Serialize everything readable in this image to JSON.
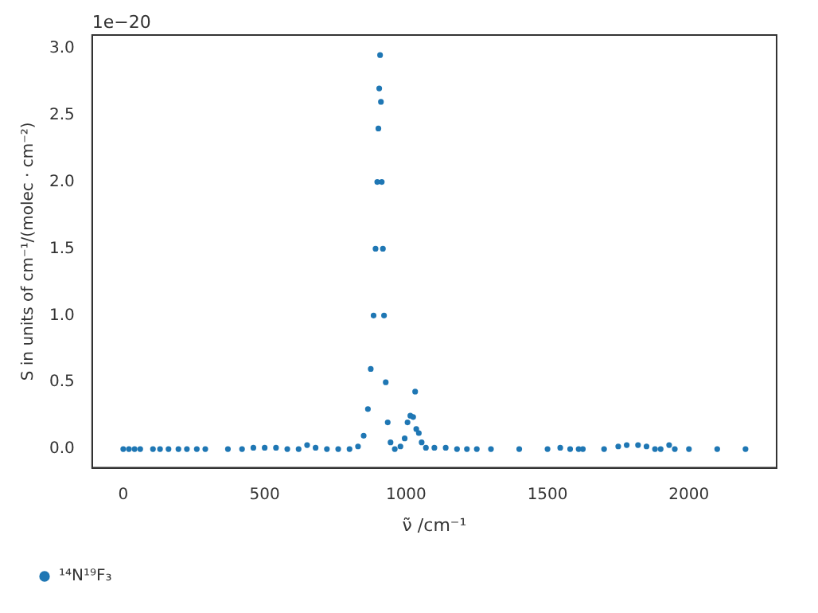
{
  "chart_data": {
    "type": "scatter",
    "xlabel": "ν̃ /cm⁻¹",
    "ylabel": "S in units of cm⁻¹/(molec · cm⁻²)",
    "annotations": [
      "1e−20"
    ],
    "xlim": [
      -110,
      2310
    ],
    "xticks": [
      0,
      500,
      1000,
      1500,
      2000
    ],
    "ylim": [
      -0.14,
      3.1
    ],
    "yticks": [
      {
        "value": 0,
        "label": "0.0"
      },
      0.5,
      {
        "value": 1,
        "label": "1.0"
      },
      1.5,
      {
        "value": 2,
        "label": "2.0"
      },
      2.5,
      {
        "value": 3,
        "label": "3.0"
      }
    ],
    "grid": false,
    "legend": "bottom left",
    "marker": "circle",
    "series": [
      {
        "name": "¹⁴N¹⁹F₃",
        "color": "#1f77b4",
        "x": [
          0,
          20,
          40,
          60,
          105,
          130,
          160,
          195,
          225,
          260,
          290,
          370,
          420,
          460,
          500,
          540,
          580,
          620,
          650,
          680,
          720,
          760,
          800,
          830,
          850,
          865,
          875,
          885,
          892,
          898,
          902,
          905,
          908,
          911,
          914,
          918,
          922,
          928,
          935,
          945,
          960,
          980,
          995,
          1005,
          1015,
          1025,
          1032,
          1036,
          1045,
          1055,
          1070,
          1100,
          1140,
          1180,
          1215,
          1250,
          1300,
          1400,
          1500,
          1545,
          1580,
          1610,
          1625,
          1700,
          1750,
          1780,
          1820,
          1850,
          1880,
          1900,
          1930,
          1950,
          2000,
          2100,
          2200
        ],
        "values": [
          0,
          0,
          0,
          0,
          0,
          0,
          0,
          0,
          0,
          0,
          0,
          0,
          0,
          0.01,
          0.01,
          0.01,
          0,
          0,
          0.03,
          0.01,
          0,
          0,
          0,
          0.02,
          0.1,
          0.3,
          0.6,
          1.0,
          1.5,
          2.0,
          2.4,
          2.7,
          2.95,
          2.6,
          2.0,
          1.5,
          1.0,
          0.5,
          0.2,
          0.05,
          0,
          0.02,
          0.08,
          0.2,
          0.25,
          0.24,
          0.43,
          0.15,
          0.12,
          0.05,
          0.01,
          0.01,
          0.01,
          0,
          0,
          0,
          0,
          0,
          0,
          0.01,
          0,
          0,
          0,
          0,
          0.02,
          0.03,
          0.03,
          0.02,
          0,
          0,
          0.03,
          0,
          0,
          0,
          0
        ]
      }
    ]
  }
}
